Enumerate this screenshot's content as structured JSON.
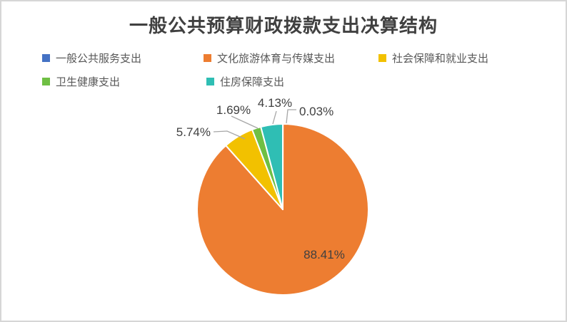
{
  "window": {
    "background": "#FFFFFF",
    "border_color": "#D6D6D6"
  },
  "chart_data": {
    "type": "pie",
    "title": "一般公共预算财政拨款支出决算结构",
    "legend_position": "top",
    "unit": "%",
    "series": [
      {
        "name": "一般公共服务支出",
        "value": 0.03,
        "label": "0.03%",
        "color": "#4472C4"
      },
      {
        "name": "文化旅游体育与传媒支出",
        "value": 88.41,
        "label": "88.41%",
        "color": "#ED7D31"
      },
      {
        "name": "社会保障和就业支出",
        "value": 5.74,
        "label": "5.74%",
        "color": "#F2C100"
      },
      {
        "name": "卫生健康支出",
        "value": 1.69,
        "label": "1.69%",
        "color": "#6FBF44"
      },
      {
        "name": "住房保障支出",
        "value": 4.13,
        "label": "4.13%",
        "color": "#2FBEB4"
      }
    ],
    "style": {
      "slice_border_color": "#FFFFFF",
      "leader_line_color": "#A6A6A6",
      "label_color": "#404040",
      "title_color": "#404040",
      "legend_text_color": "#595959"
    }
  }
}
